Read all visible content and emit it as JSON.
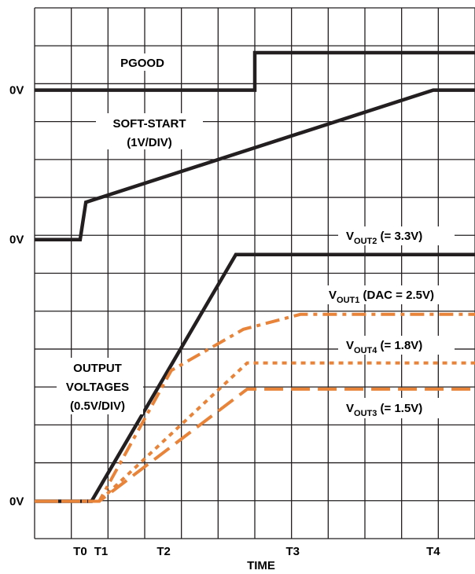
{
  "chart_data": {
    "type": "line",
    "xlabel": "TIME",
    "x_ticks": [
      {
        "label": "T0",
        "x": 1.2
      },
      {
        "label": "T1",
        "x": 1.75
      },
      {
        "label": "T2",
        "x": 3.4
      },
      {
        "label": "T3",
        "x": 6.8
      },
      {
        "label": "T4",
        "x": 10.5
      }
    ],
    "y_ticks": [
      {
        "label": "0V",
        "y": 0
      },
      {
        "label": "0V",
        "y": 7
      },
      {
        "label": "0V",
        "y": 11
      }
    ],
    "xlim": [
      0,
      11.6
    ],
    "ylim": [
      -1,
      13.2
    ],
    "grid": true,
    "colors": {
      "black": "#231f20",
      "orange": "#e8833a"
    },
    "series": [
      {
        "key": "pgood",
        "color": "#231f20",
        "style": "solid",
        "x": [
          0,
          5.8,
          5.8,
          11.6
        ],
        "y": [
          11,
          11,
          12,
          12
        ]
      },
      {
        "key": "softstart",
        "color": "#231f20",
        "style": "solid",
        "x": [
          0,
          1.2,
          1.35,
          10.5,
          11.6
        ],
        "y": [
          7,
          7,
          8,
          11,
          11
        ]
      },
      {
        "key": "vout2",
        "color": "#231f20",
        "style": "solid",
        "x": [
          0,
          1.5,
          5.3,
          11.6
        ],
        "y": [
          0,
          0,
          6.6,
          6.6
        ]
      },
      {
        "key": "vout1",
        "color": "#e8833a",
        "style": "dashdot",
        "x": [
          0,
          1.5,
          1.7,
          3.6,
          5.5,
          7.0,
          11.6
        ],
        "y": [
          0,
          0,
          0,
          3.5,
          4.6,
          5.0,
          5.0
        ]
      },
      {
        "key": "vout4",
        "color": "#e8833a",
        "style": "dotted",
        "x": [
          0,
          1.5,
          1.7,
          5.6,
          11.6
        ],
        "y": [
          0,
          0,
          0,
          3.7,
          3.7
        ]
      },
      {
        "key": "vout3",
        "color": "#e8833a",
        "style": "dashed",
        "x": [
          0,
          1.5,
          1.7,
          5.6,
          11.6
        ],
        "y": [
          0,
          0,
          0,
          3.0,
          3.0
        ]
      }
    ],
    "annotations": {
      "pgood": "PGOOD",
      "softstart_line1": "SOFT-START",
      "softstart_line2": "(1V/DIV)",
      "outputs_line1": "OUTPUT",
      "outputs_line2": "VOLTAGES",
      "outputs_line3": "(0.5V/DIV)",
      "vout2": {
        "main": "V",
        "sub": "OUT2",
        "tail": " (= 3.3V)"
      },
      "vout1": {
        "main": "V",
        "sub": "OUT1",
        "tail": " (DAC = 2.5V)"
      },
      "vout4": {
        "main": "V",
        "sub": "OUT4",
        "tail": " (= 1.8V)"
      },
      "vout3": {
        "main": "V",
        "sub": "OUT3",
        "tail": " (= 1.5V)"
      }
    }
  }
}
